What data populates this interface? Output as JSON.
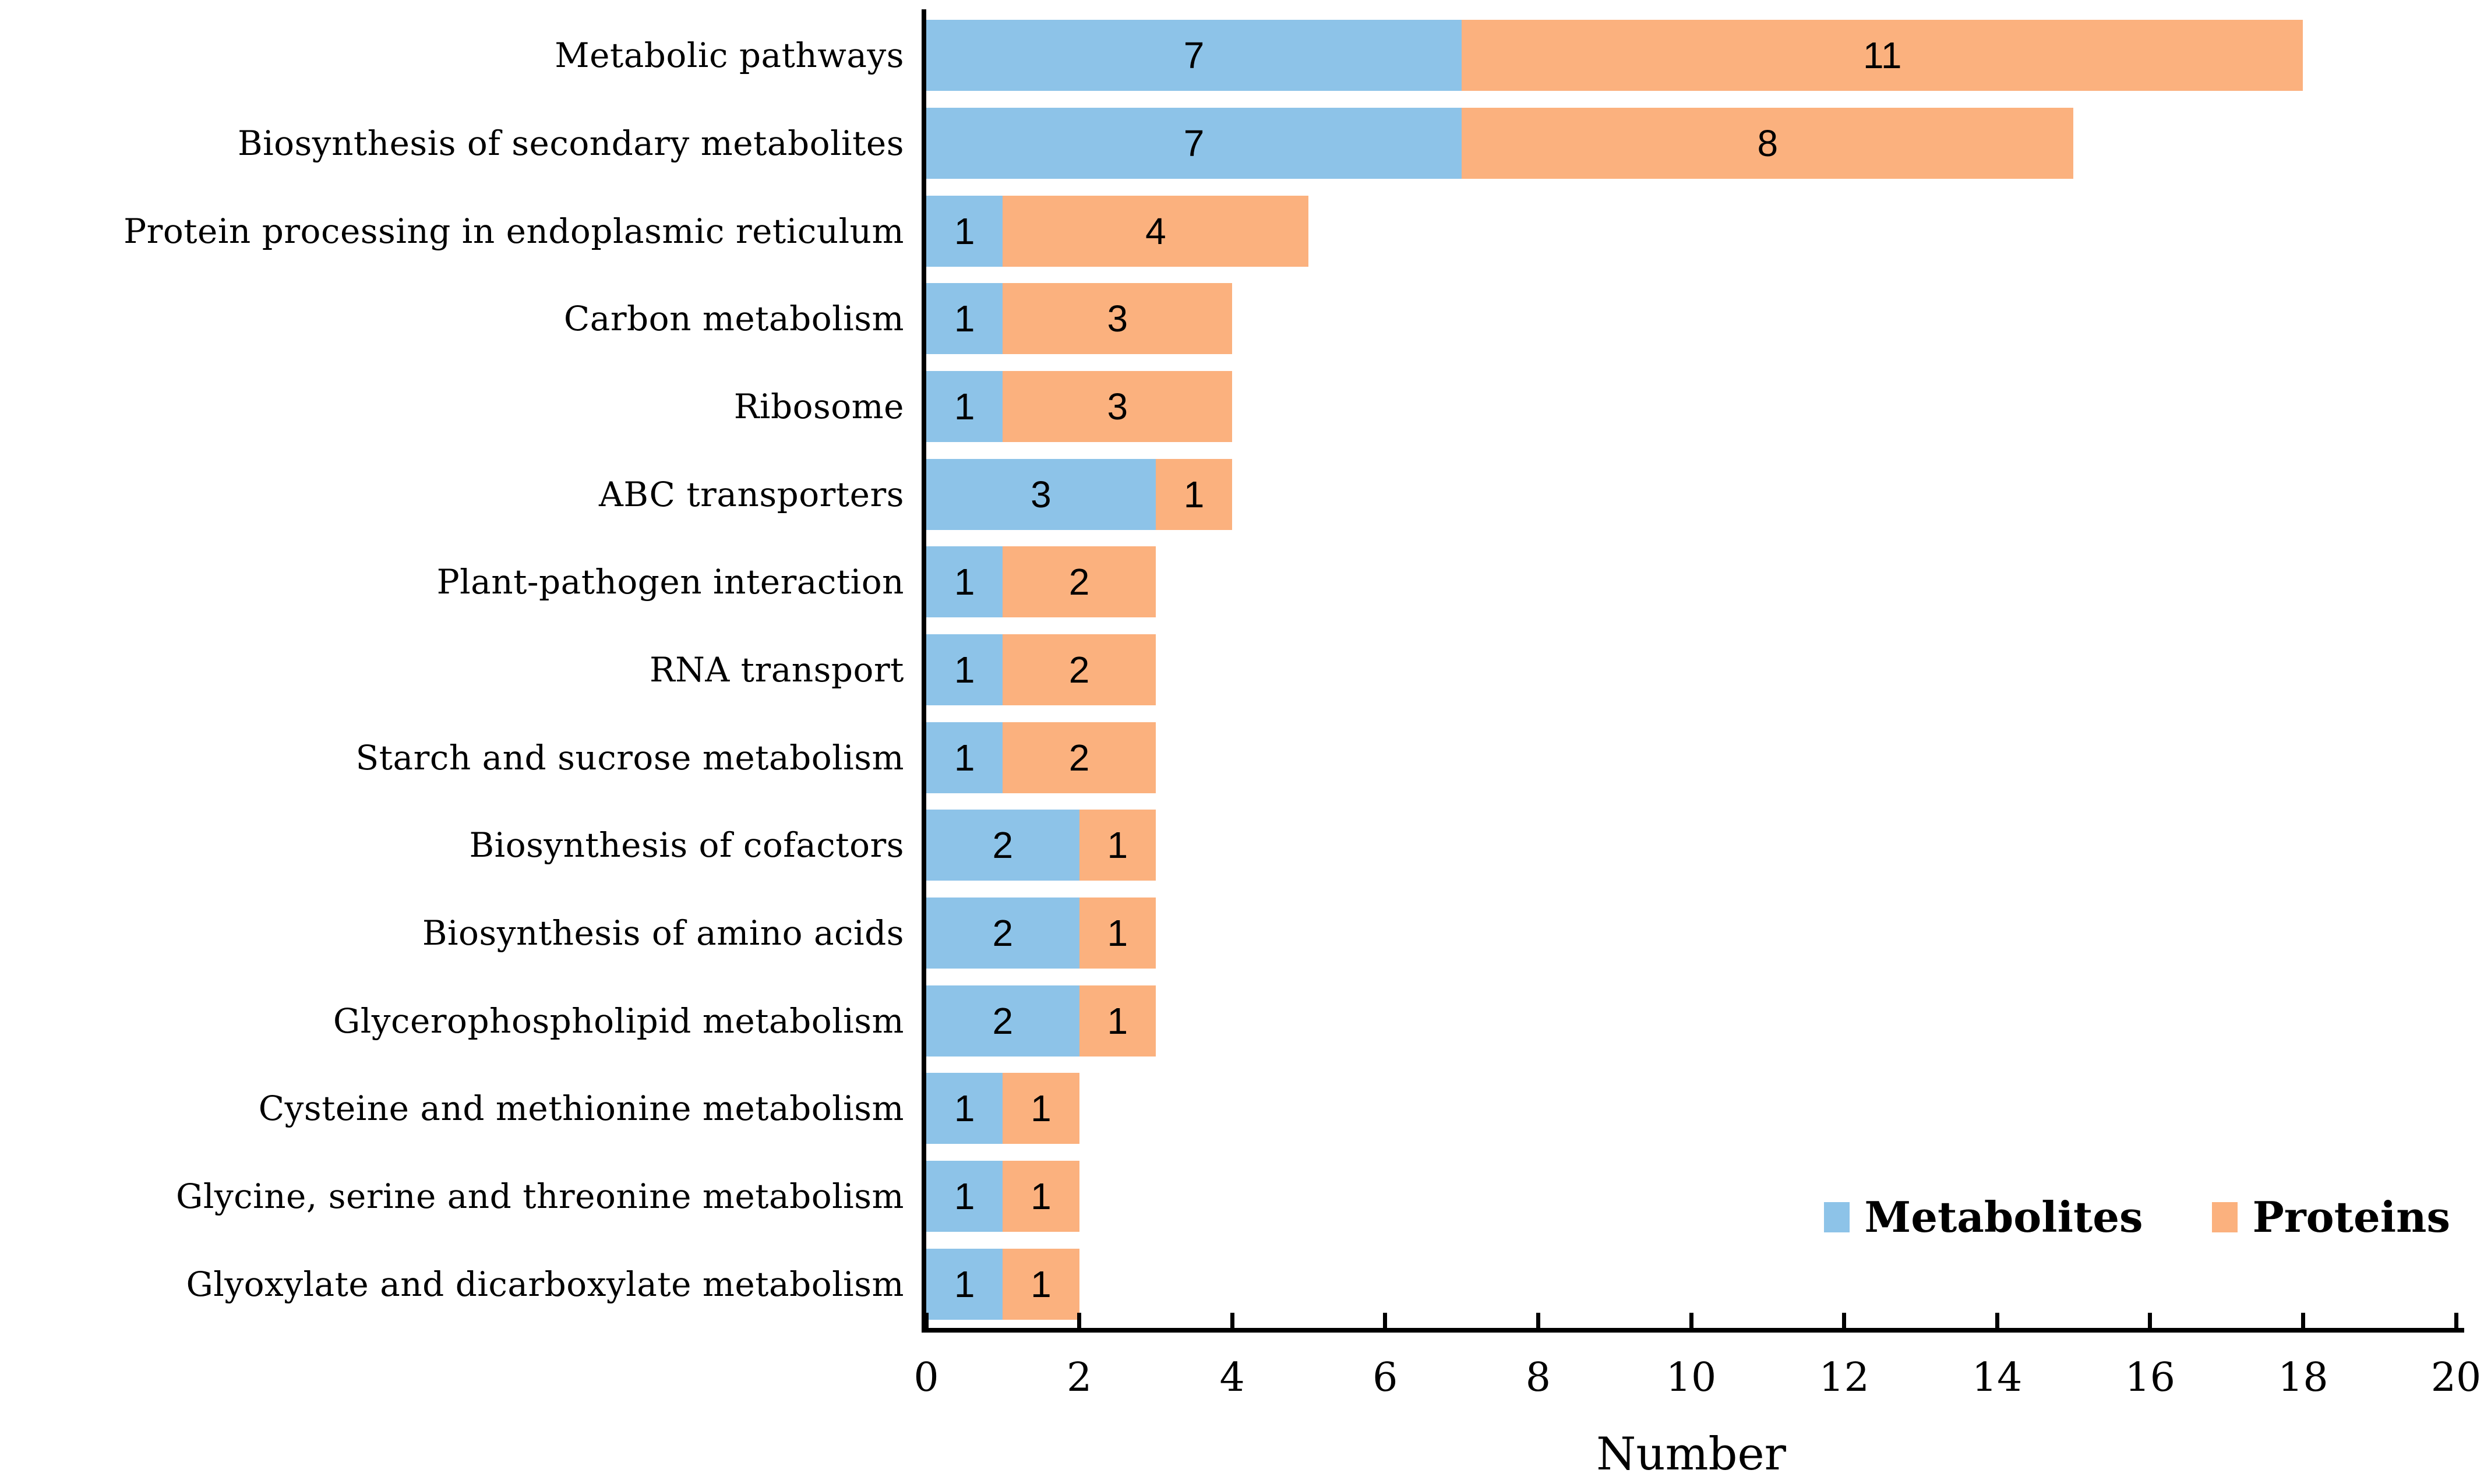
{
  "chart_data": {
    "type": "bar",
    "orientation": "horizontal",
    "stacked": true,
    "title": "",
    "xlabel": "Number",
    "ylabel": "",
    "xlim": [
      0,
      20
    ],
    "x_ticks": [
      0,
      2,
      4,
      6,
      8,
      10,
      12,
      14,
      16,
      18,
      20
    ],
    "grid": false,
    "legend_position": "inside-bottom-right",
    "bar_value_labels": true,
    "categories": [
      "Metabolic pathways",
      "Biosynthesis of secondary metabolites",
      "Protein processing in endoplasmic reticulum",
      "Carbon metabolism",
      "Ribosome",
      "ABC transporters",
      "Plant-pathogen interaction",
      "RNA transport",
      "Starch and sucrose metabolism",
      "Biosynthesis of cofactors",
      "Biosynthesis of amino acids",
      "Glycerophospholipid metabolism",
      "Cysteine and methionine metabolism",
      "Glycine, serine and threonine metabolism",
      "Glyoxylate and dicarboxylate metabolism"
    ],
    "series": [
      {
        "name": "Metabolites",
        "color": "#8DC3E8",
        "values": [
          7,
          7,
          1,
          1,
          1,
          3,
          1,
          1,
          1,
          2,
          2,
          2,
          1,
          1,
          1
        ]
      },
      {
        "name": "Proteins",
        "color": "#FBB17E",
        "values": [
          11,
          8,
          4,
          3,
          3,
          1,
          2,
          2,
          2,
          1,
          1,
          1,
          1,
          1,
          1
        ]
      }
    ],
    "totals": [
      18,
      15,
      5,
      4,
      4,
      4,
      3,
      3,
      3,
      3,
      3,
      3,
      2,
      2,
      2
    ],
    "axis_color": "#000000",
    "text_color": "#000000"
  }
}
